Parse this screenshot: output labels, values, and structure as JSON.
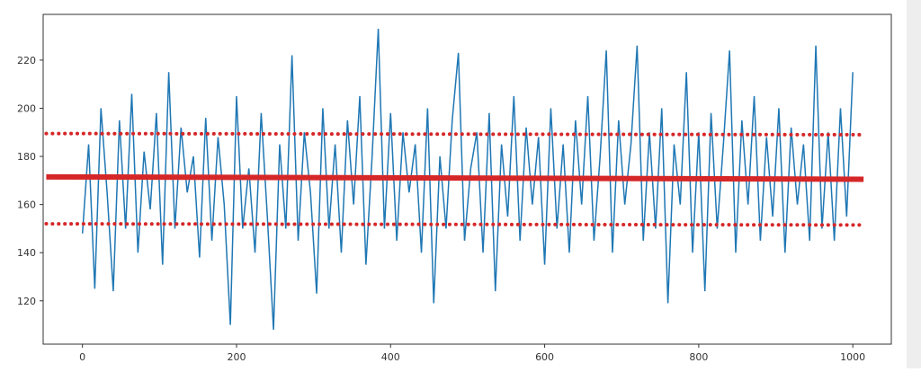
{
  "chart_data": {
    "type": "line",
    "xlim": [
      -51,
      1050
    ],
    "ylim": [
      102,
      239
    ],
    "xticks": [
      0,
      200,
      400,
      600,
      800,
      1000
    ],
    "yticks": [
      120,
      140,
      160,
      180,
      200,
      220
    ],
    "grid": false,
    "series": [
      {
        "color": "#1f77b4",
        "linewidth": 1.5,
        "linestyle": "solid",
        "x": [
          0,
          8,
          16,
          24,
          32,
          40,
          48,
          56,
          64,
          72,
          80,
          88,
          96,
          104,
          112,
          120,
          128,
          136,
          144,
          152,
          160,
          168,
          176,
          184,
          192,
          200,
          208,
          216,
          224,
          232,
          240,
          248,
          256,
          264,
          272,
          280,
          288,
          296,
          304,
          312,
          320,
          328,
          336,
          344,
          352,
          360,
          368,
          376,
          384,
          392,
          400,
          408,
          416,
          424,
          432,
          440,
          448,
          456,
          464,
          472,
          480,
          488,
          496,
          504,
          512,
          520,
          528,
          536,
          544,
          552,
          560,
          568,
          576,
          584,
          592,
          600,
          608,
          616,
          624,
          632,
          640,
          648,
          656,
          664,
          672,
          680,
          688,
          696,
          704,
          712,
          720,
          728,
          736,
          744,
          752,
          760,
          768,
          776,
          784,
          792,
          800,
          808,
          816,
          824,
          832,
          840,
          848,
          856,
          864,
          872,
          880,
          888,
          896,
          904,
          912,
          920,
          928,
          936,
          944,
          952,
          960,
          968,
          976,
          984,
          992,
          1000
        ],
        "values": [
          148,
          185,
          125,
          200,
          165,
          124,
          195,
          150,
          206,
          140,
          182,
          158,
          198,
          135,
          215,
          150,
          192,
          165,
          180,
          138,
          196,
          145,
          188,
          160,
          110,
          205,
          150,
          175,
          140,
          198,
          155,
          108,
          185,
          150,
          222,
          145,
          190,
          165,
          123,
          200,
          150,
          185,
          140,
          195,
          160,
          205,
          135,
          180,
          233,
          150,
          198,
          145,
          190,
          165,
          185,
          140,
          200,
          119,
          180,
          150,
          195,
          223,
          145,
          175,
          190,
          140,
          198,
          124,
          185,
          155,
          205,
          145,
          192,
          160,
          188,
          135,
          200,
          150,
          185,
          140,
          195,
          160,
          205,
          145,
          180,
          224,
          140,
          195,
          160,
          185,
          226,
          145,
          190,
          150,
          200,
          119,
          185,
          160,
          215,
          140,
          190,
          124,
          198,
          150,
          185,
          224,
          140,
          195,
          160,
          205,
          145,
          188,
          155,
          200,
          140,
          192,
          160,
          185,
          145,
          226,
          150,
          190,
          145,
          200,
          155,
          215
        ]
      },
      {
        "color": "#d62728",
        "linewidth": 6,
        "linestyle": "solid",
        "x": [
          -47,
          1014
        ],
        "values": [
          171.5,
          170.5
        ]
      },
      {
        "color": "#d62728",
        "linewidth": 4,
        "linestyle": "dotted",
        "x": [
          -47,
          1014
        ],
        "values": [
          189.5,
          189
        ]
      },
      {
        "color": "#d62728",
        "linewidth": 4,
        "linestyle": "dotted",
        "x": [
          -47,
          1014
        ],
        "values": [
          152,
          151.5
        ]
      }
    ]
  }
}
